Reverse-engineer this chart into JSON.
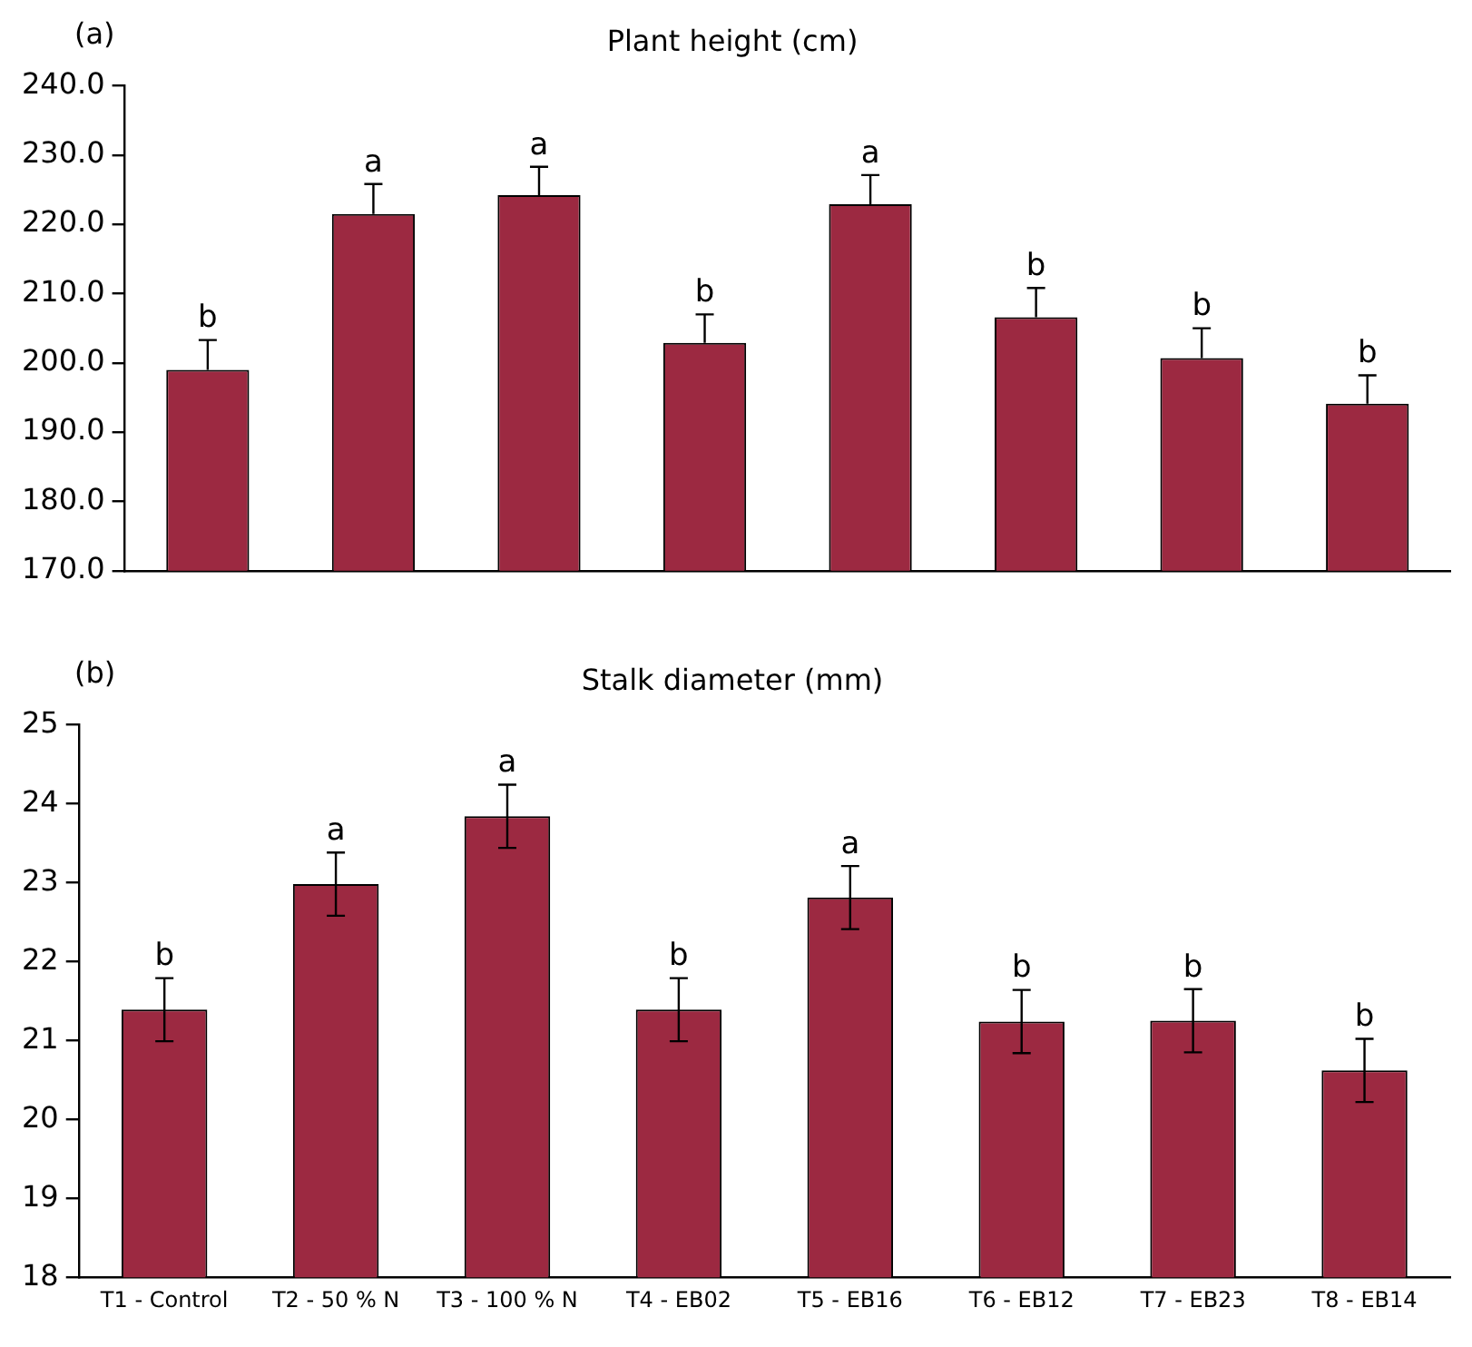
{
  "chart_data": [
    {
      "type": "bar",
      "title": "Plant height (cm)",
      "categories": [
        "T1 - Control",
        "T2 - 50 % N",
        "T3 - 100 % N",
        "T4 - EB02",
        "T5 - EB16",
        "T6 - EB12",
        "T7 - EB23",
        "T8 - EB14"
      ],
      "values": [
        199.0,
        221.5,
        224.2,
        202.9,
        222.9,
        206.6,
        200.7,
        194.1
      ],
      "color": "#9c2941",
      "errors": [
        [
          199.0,
          203.3
        ],
        [
          221.5,
          225.8
        ],
        [
          224.2,
          228.3
        ],
        [
          202.9,
          207.0
        ],
        [
          222.9,
          227.1
        ],
        [
          206.6,
          210.8
        ],
        [
          200.7,
          205.0
        ],
        [
          194.1,
          198.2
        ]
      ],
      "ylim": [
        170,
        240
      ],
      "yticks": [
        {
          "value": 170,
          "label": "170.0"
        },
        {
          "value": 180,
          "label": "180.0"
        },
        {
          "value": 190,
          "label": "190.0"
        },
        {
          "value": 200,
          "label": "200.0"
        },
        {
          "value": 210,
          "label": "210.0"
        },
        {
          "value": 220,
          "label": "220.0"
        },
        {
          "value": 230,
          "label": "230.0"
        },
        {
          "value": 240,
          "label": "240.0"
        }
      ],
      "grid": false,
      "legend": false,
      "tick_labels": "y",
      "annotations": [
        "(a)",
        {
          "text": "b",
          "x": "T1 - Control",
          "y": 199.0
        },
        {
          "text": "a",
          "x": "T2 - 50 % N",
          "y": 221.5
        },
        {
          "text": "a",
          "x": "T3 - 100 % N",
          "y": 224.2
        },
        {
          "text": "b",
          "x": "T4 - EB02",
          "y": 202.9
        },
        {
          "text": "a",
          "x": "T5 - EB16",
          "y": 222.9
        },
        {
          "text": "b",
          "x": "T6 - EB12",
          "y": 206.6
        },
        {
          "text": "b",
          "x": "T7 - EB23",
          "y": 200.7
        },
        {
          "text": "b",
          "x": "T8 - EB14",
          "y": 194.1
        }
      ]
    },
    {
      "type": "bar",
      "title": "Stalk diameter (mm)",
      "categories": [
        "T1 - Control",
        "T2 - 50 % N",
        "T3 - 100 % N",
        "T4 - EB02",
        "T5 - EB16",
        "T6 - EB12",
        "T7 - EB23",
        "T8 - EB14"
      ],
      "values": [
        21.39,
        22.98,
        23.84,
        21.39,
        22.81,
        21.24,
        21.25,
        20.62
      ],
      "color": "#9c2941",
      "errors": [
        0.4,
        0.4,
        0.4,
        0.4,
        0.4,
        0.4,
        0.4,
        0.4
      ],
      "ylim": [
        18,
        25
      ],
      "yticks": [
        18,
        19,
        20,
        21,
        22,
        23,
        24,
        25
      ],
      "grid": false,
      "legend": false,
      "annotations": [
        "(b)",
        {
          "text": "b",
          "x": "T1 - Control",
          "y": 21.79
        },
        {
          "text": "a",
          "x": "T2 - 50 % N",
          "y": 23.38
        },
        {
          "text": "a",
          "x": "T3 - 100 % N",
          "y": 24.24
        },
        {
          "text": "b",
          "x": "T4 - EB02",
          "y": 21.79
        },
        {
          "text": "a",
          "x": "T5 - EB16",
          "y": 23.21
        },
        {
          "text": "b",
          "x": "T6 - EB12",
          "y": 21.64
        },
        {
          "text": "b",
          "x": "T7 - EB23",
          "y": 21.65
        },
        {
          "text": "b",
          "x": "T8 - EB14",
          "y": 21.02
        }
      ]
    }
  ]
}
